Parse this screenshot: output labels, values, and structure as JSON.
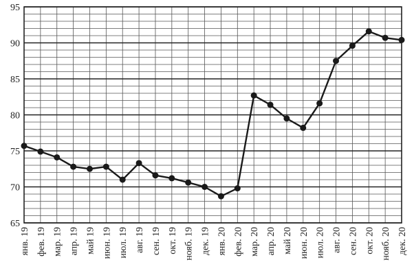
{
  "chart_data": {
    "type": "line",
    "categories": [
      "янв. 19",
      "фев. 19",
      "мар. 19",
      "апр. 19",
      "май 19",
      "июн. 19",
      "июл. 19",
      "авг. 19",
      "сен. 19",
      "окт. 19",
      "нояб. 19",
      "дек. 19",
      "янв. 20",
      "фев. 20",
      "мар. 20",
      "апр. 20",
      "май 20",
      "июн. 20",
      "июл. 20",
      "авг. 20",
      "сен. 20",
      "окт. 20",
      "нояб. 20",
      "дек. 20"
    ],
    "values": [
      75.7,
      74.9,
      74.1,
      72.8,
      72.5,
      72.8,
      71.0,
      73.3,
      71.6,
      71.2,
      70.6,
      70.0,
      68.7,
      69.8,
      82.7,
      81.4,
      79.5,
      78.2,
      81.6,
      87.5,
      89.6,
      91.6,
      90.7,
      90.4
    ],
    "color": "#1a1a1a",
    "ylim": [
      65,
      95
    ],
    "yticks": [
      65,
      70,
      75,
      80,
      85,
      90,
      95
    ],
    "minor_yticks": [
      66,
      67,
      68,
      69,
      71,
      72,
      73,
      74,
      76,
      77,
      78,
      79,
      81,
      82,
      83,
      84,
      86,
      87,
      88,
      89,
      91,
      92,
      93,
      94
    ],
    "grid": true
  }
}
